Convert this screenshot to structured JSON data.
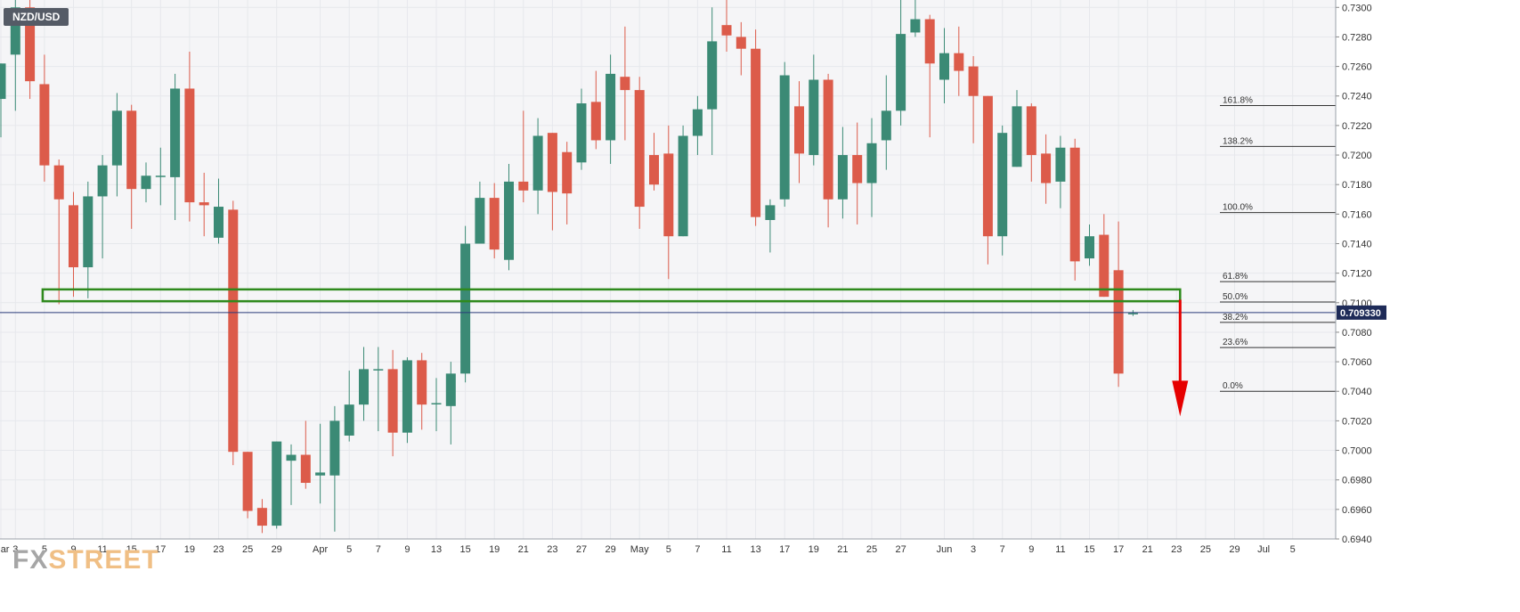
{
  "symbol": "NZD/USD",
  "watermark": {
    "part1": "FX",
    "part2": "STREET"
  },
  "colors": {
    "bull": "#3b8a75",
    "bear": "#dc5b4a",
    "support_box": "#2f8a1d",
    "arrow": "#e60000",
    "price_line": "#2a3a7a",
    "price_badge_bg": "#1e2b58",
    "grid": "#e6e8ec",
    "background": "#f5f5f7"
  },
  "chart_data": {
    "type": "candlestick",
    "title": "",
    "xlabel": "",
    "ylabel": "",
    "ylim": [
      0.694,
      0.7305
    ],
    "grid": true,
    "current_price": 0.70933,
    "current_price_label": "0.709330",
    "yticks": [
      "0.6940",
      "0.6960",
      "0.6980",
      "0.7000",
      "0.7020",
      "0.7040",
      "0.7060",
      "0.7080",
      "0.7100",
      "0.7120",
      "0.7140",
      "0.7160",
      "0.7180",
      "0.7200",
      "0.7220",
      "0.7240",
      "0.7260",
      "0.7280",
      "0.7300"
    ],
    "xticks": [
      {
        "label": "Mar",
        "index": 0
      },
      {
        "label": "3",
        "index": 1
      },
      {
        "label": "5",
        "index": 3
      },
      {
        "label": "9",
        "index": 5
      },
      {
        "label": "11",
        "index": 7
      },
      {
        "label": "15",
        "index": 9
      },
      {
        "label": "17",
        "index": 11
      },
      {
        "label": "19",
        "index": 13
      },
      {
        "label": "23",
        "index": 15
      },
      {
        "label": "25",
        "index": 17
      },
      {
        "label": "29",
        "index": 19
      },
      {
        "label": "Apr",
        "index": 22
      },
      {
        "label": "5",
        "index": 24
      },
      {
        "label": "7",
        "index": 26
      },
      {
        "label": "9",
        "index": 28
      },
      {
        "label": "13",
        "index": 30
      },
      {
        "label": "15",
        "index": 32
      },
      {
        "label": "19",
        "index": 34
      },
      {
        "label": "21",
        "index": 36
      },
      {
        "label": "23",
        "index": 38
      },
      {
        "label": "27",
        "index": 40
      },
      {
        "label": "29",
        "index": 42
      },
      {
        "label": "May",
        "index": 44
      },
      {
        "label": "5",
        "index": 46
      },
      {
        "label": "7",
        "index": 48
      },
      {
        "label": "11",
        "index": 50
      },
      {
        "label": "13",
        "index": 52
      },
      {
        "label": "17",
        "index": 54
      },
      {
        "label": "19",
        "index": 56
      },
      {
        "label": "21",
        "index": 58
      },
      {
        "label": "25",
        "index": 60
      },
      {
        "label": "27",
        "index": 62
      },
      {
        "label": "Jun",
        "index": 65
      },
      {
        "label": "3",
        "index": 67
      },
      {
        "label": "7",
        "index": 69
      },
      {
        "label": "9",
        "index": 71
      },
      {
        "label": "11",
        "index": 73
      },
      {
        "label": "15",
        "index": 75
      },
      {
        "label": "17",
        "index": 77
      },
      {
        "label": "21",
        "index": 79
      },
      {
        "label": "23",
        "index": 81
      },
      {
        "label": "25",
        "index": 83
      },
      {
        "label": "29",
        "index": 85
      },
      {
        "label": "Jul",
        "index": 87
      },
      {
        "label": "5",
        "index": 89
      }
    ],
    "candles": [
      {
        "o": 0.7238,
        "h": 0.7262,
        "l": 0.7212,
        "c": 0.7262
      },
      {
        "o": 0.7268,
        "h": 0.731,
        "l": 0.723,
        "c": 0.73
      },
      {
        "o": 0.73,
        "h": 0.7305,
        "l": 0.7238,
        "c": 0.725
      },
      {
        "o": 0.7248,
        "h": 0.7268,
        "l": 0.7182,
        "c": 0.7193
      },
      {
        "o": 0.7193,
        "h": 0.7197,
        "l": 0.7099,
        "c": 0.717
      },
      {
        "o": 0.7166,
        "h": 0.7175,
        "l": 0.7104,
        "c": 0.7124
      },
      {
        "o": 0.7124,
        "h": 0.7182,
        "l": 0.7103,
        "c": 0.7172
      },
      {
        "o": 0.7172,
        "h": 0.72,
        "l": 0.713,
        "c": 0.7193
      },
      {
        "o": 0.7193,
        "h": 0.7242,
        "l": 0.7172,
        "c": 0.723
      },
      {
        "o": 0.723,
        "h": 0.7234,
        "l": 0.715,
        "c": 0.7177
      },
      {
        "o": 0.7177,
        "h": 0.7195,
        "l": 0.7168,
        "c": 0.7186
      },
      {
        "o": 0.7186,
        "h": 0.7205,
        "l": 0.7166,
        "c": 0.7186
      },
      {
        "o": 0.7185,
        "h": 0.7255,
        "l": 0.7156,
        "c": 0.7245
      },
      {
        "o": 0.7245,
        "h": 0.727,
        "l": 0.7155,
        "c": 0.7168
      },
      {
        "o": 0.7168,
        "h": 0.7188,
        "l": 0.7145,
        "c": 0.7166
      },
      {
        "o": 0.7144,
        "h": 0.7184,
        "l": 0.714,
        "c": 0.7165
      },
      {
        "o": 0.7163,
        "h": 0.7169,
        "l": 0.699,
        "c": 0.6999
      },
      {
        "o": 0.6999,
        "h": 0.6999,
        "l": 0.6954,
        "c": 0.6959
      },
      {
        "o": 0.6961,
        "h": 0.6967,
        "l": 0.6944,
        "c": 0.6949
      },
      {
        "o": 0.6949,
        "h": 0.7006,
        "l": 0.6947,
        "c": 0.7006
      },
      {
        "o": 0.6993,
        "h": 0.7004,
        "l": 0.6963,
        "c": 0.6997
      },
      {
        "o": 0.6997,
        "h": 0.702,
        "l": 0.6974,
        "c": 0.6978
      },
      {
        "o": 0.6983,
        "h": 0.7018,
        "l": 0.6964,
        "c": 0.6985
      },
      {
        "o": 0.6983,
        "h": 0.703,
        "l": 0.6945,
        "c": 0.702
      },
      {
        "o": 0.701,
        "h": 0.7054,
        "l": 0.7006,
        "c": 0.7031
      },
      {
        "o": 0.7031,
        "h": 0.707,
        "l": 0.702,
        "c": 0.7055
      },
      {
        "o": 0.7055,
        "h": 0.707,
        "l": 0.7013,
        "c": 0.7055
      },
      {
        "o": 0.7055,
        "h": 0.7068,
        "l": 0.6996,
        "c": 0.7012
      },
      {
        "o": 0.7012,
        "h": 0.7063,
        "l": 0.7005,
        "c": 0.7061
      },
      {
        "o": 0.7061,
        "h": 0.7066,
        "l": 0.7014,
        "c": 0.7031
      },
      {
        "o": 0.7032,
        "h": 0.7049,
        "l": 0.7013,
        "c": 0.7032
      },
      {
        "o": 0.703,
        "h": 0.706,
        "l": 0.7004,
        "c": 0.7052
      },
      {
        "o": 0.7052,
        "h": 0.7152,
        "l": 0.7046,
        "c": 0.714
      },
      {
        "o": 0.714,
        "h": 0.7182,
        "l": 0.714,
        "c": 0.7171
      },
      {
        "o": 0.7171,
        "h": 0.7181,
        "l": 0.713,
        "c": 0.7136
      },
      {
        "o": 0.7129,
        "h": 0.7194,
        "l": 0.7122,
        "c": 0.7182
      },
      {
        "o": 0.7182,
        "h": 0.723,
        "l": 0.7168,
        "c": 0.7176
      },
      {
        "o": 0.7176,
        "h": 0.7225,
        "l": 0.716,
        "c": 0.7213
      },
      {
        "o": 0.7215,
        "h": 0.7215,
        "l": 0.7149,
        "c": 0.7175
      },
      {
        "o": 0.7202,
        "h": 0.7209,
        "l": 0.7153,
        "c": 0.7174
      },
      {
        "o": 0.7195,
        "h": 0.7245,
        "l": 0.719,
        "c": 0.7235
      },
      {
        "o": 0.7236,
        "h": 0.7257,
        "l": 0.7204,
        "c": 0.721
      },
      {
        "o": 0.721,
        "h": 0.7268,
        "l": 0.7194,
        "c": 0.7255
      },
      {
        "o": 0.7253,
        "h": 0.7287,
        "l": 0.721,
        "c": 0.7244
      },
      {
        "o": 0.7244,
        "h": 0.7253,
        "l": 0.715,
        "c": 0.7165
      },
      {
        "o": 0.72,
        "h": 0.7215,
        "l": 0.7176,
        "c": 0.718
      },
      {
        "o": 0.7201,
        "h": 0.722,
        "l": 0.7116,
        "c": 0.7145
      },
      {
        "o": 0.7145,
        "h": 0.722,
        "l": 0.7145,
        "c": 0.7213
      },
      {
        "o": 0.7213,
        "h": 0.724,
        "l": 0.72,
        "c": 0.7231
      },
      {
        "o": 0.7231,
        "h": 0.73,
        "l": 0.72,
        "c": 0.7277
      },
      {
        "o": 0.7288,
        "h": 0.7305,
        "l": 0.727,
        "c": 0.7281
      },
      {
        "o": 0.728,
        "h": 0.729,
        "l": 0.7254,
        "c": 0.7272
      },
      {
        "o": 0.7272,
        "h": 0.7285,
        "l": 0.7152,
        "c": 0.7158
      },
      {
        "o": 0.7156,
        "h": 0.717,
        "l": 0.7134,
        "c": 0.7166
      },
      {
        "o": 0.717,
        "h": 0.7263,
        "l": 0.7165,
        "c": 0.7254
      },
      {
        "o": 0.7233,
        "h": 0.725,
        "l": 0.7181,
        "c": 0.7201
      },
      {
        "o": 0.72,
        "h": 0.7268,
        "l": 0.7193,
        "c": 0.7251
      },
      {
        "o": 0.7251,
        "h": 0.7255,
        "l": 0.7151,
        "c": 0.717
      },
      {
        "o": 0.717,
        "h": 0.7219,
        "l": 0.7157,
        "c": 0.72
      },
      {
        "o": 0.72,
        "h": 0.7222,
        "l": 0.7153,
        "c": 0.7181
      },
      {
        "o": 0.7181,
        "h": 0.7225,
        "l": 0.7158,
        "c": 0.7208
      },
      {
        "o": 0.721,
        "h": 0.7254,
        "l": 0.719,
        "c": 0.723
      },
      {
        "o": 0.723,
        "h": 0.7305,
        "l": 0.722,
        "c": 0.7282
      },
      {
        "o": 0.7283,
        "h": 0.731,
        "l": 0.728,
        "c": 0.7292
      },
      {
        "o": 0.7292,
        "h": 0.7295,
        "l": 0.7212,
        "c": 0.7262
      },
      {
        "o": 0.7251,
        "h": 0.7286,
        "l": 0.7235,
        "c": 0.7269
      },
      {
        "o": 0.7269,
        "h": 0.7287,
        "l": 0.724,
        "c": 0.7257
      },
      {
        "o": 0.726,
        "h": 0.7267,
        "l": 0.7208,
        "c": 0.724
      },
      {
        "o": 0.724,
        "h": 0.724,
        "l": 0.7126,
        "c": 0.7145
      },
      {
        "o": 0.7145,
        "h": 0.722,
        "l": 0.7132,
        "c": 0.7215
      },
      {
        "o": 0.7192,
        "h": 0.7244,
        "l": 0.7192,
        "c": 0.7233
      },
      {
        "o": 0.7233,
        "h": 0.7235,
        "l": 0.7182,
        "c": 0.72
      },
      {
        "o": 0.7201,
        "h": 0.7214,
        "l": 0.7167,
        "c": 0.7181
      },
      {
        "o": 0.7182,
        "h": 0.7213,
        "l": 0.7164,
        "c": 0.7205
      },
      {
        "o": 0.7205,
        "h": 0.7211,
        "l": 0.7115,
        "c": 0.7128
      },
      {
        "o": 0.713,
        "h": 0.7153,
        "l": 0.7125,
        "c": 0.7145
      },
      {
        "o": 0.7146,
        "h": 0.716,
        "l": 0.7104,
        "c": 0.7104
      },
      {
        "o": 0.7122,
        "h": 0.7155,
        "l": 0.7043,
        "c": 0.7052
      },
      {
        "o": 0.7093,
        "h": 0.7095,
        "l": 0.7091,
        "c": 0.7093
      }
    ],
    "fib_levels": [
      {
        "label": "161.8%",
        "value": 0.72335
      },
      {
        "label": "138.2%",
        "value": 0.72058
      },
      {
        "label": "100.0%",
        "value": 0.7161
      },
      {
        "label": "61.8%",
        "value": 0.71143
      },
      {
        "label": "50.0%",
        "value": 0.71005
      },
      {
        "label": "38.2%",
        "value": 0.70867
      },
      {
        "label": "23.6%",
        "value": 0.70696
      },
      {
        "label": "0.0%",
        "value": 0.704
      }
    ],
    "support_zone": {
      "from_index": 3,
      "to_index": 81,
      "low": 0.7101,
      "high": 0.7109
    },
    "projection_arrow": {
      "index": 81,
      "from": 0.7102,
      "to": 0.7023
    }
  }
}
